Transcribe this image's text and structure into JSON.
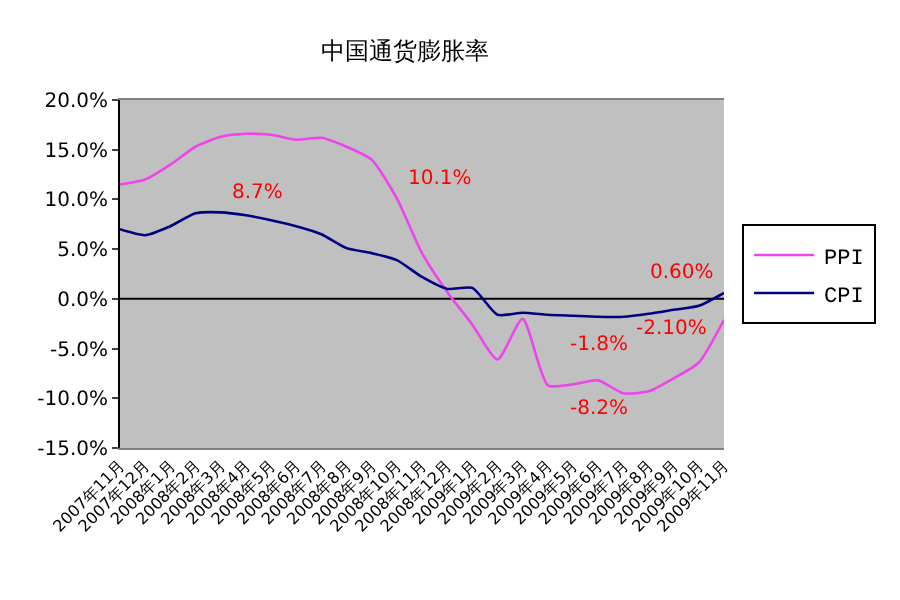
{
  "chart_data": {
    "type": "line",
    "title": "中国通货膨胀率",
    "categories": [
      "2007年11月",
      "2007年12月",
      "2008年1月",
      "2008年2月",
      "2008年3月",
      "2008年4月",
      "2008年5月",
      "2008年6月",
      "2008年7月",
      "2008年8月",
      "2008年9月",
      "2008年10月",
      "2008年11月",
      "2008年12月",
      "2009年1月",
      "2009年2月",
      "2009年3月",
      "2009年4月",
      "2009年5月",
      "2009年6月",
      "2009年7月",
      "2009年8月",
      "2009年9月",
      "2009年10月",
      "2009年11月"
    ],
    "series": [
      {
        "name": "PPI",
        "color": "#ee44ee",
        "values": [
          11.5,
          12,
          13.5,
          15.3,
          16.3,
          16.6,
          16.5,
          16,
          16.2,
          15.3,
          14,
          10.1,
          4.6,
          0.7,
          -2.6,
          -6.1,
          -2,
          -8.7,
          -8.6,
          -8.2,
          -9.5,
          -9.3,
          -8,
          -6.4,
          -2.1
        ],
        "value_labels": [
          null,
          null,
          null,
          null,
          null,
          null,
          null,
          null,
          null,
          null,
          null,
          "10.1%",
          null,
          null,
          null,
          null,
          null,
          null,
          null,
          "-8.2%",
          null,
          null,
          null,
          null,
          "-2.10%"
        ]
      },
      {
        "name": "CPI",
        "color": "#000080",
        "values": [
          7,
          6.4,
          7.3,
          8.6,
          8.7,
          8.4,
          7.9,
          7.3,
          6.5,
          5.1,
          4.6,
          3.9,
          2.2,
          1,
          1.1,
          -1.6,
          -1.4,
          -1.6,
          -1.7,
          -1.8,
          -1.8,
          -1.5,
          -1.1,
          -0.7,
          0.6
        ],
        "value_labels": [
          null,
          null,
          null,
          null,
          "8.7%",
          null,
          null,
          null,
          null,
          null,
          null,
          null,
          null,
          null,
          null,
          null,
          null,
          null,
          null,
          "-1.8%",
          null,
          null,
          null,
          null,
          "0.60%"
        ]
      }
    ],
    "ylim": [
      -15,
      20
    ],
    "yticks": [
      {
        "value": -15,
        "label": "-15.0%"
      },
      {
        "value": -10,
        "label": "-10.0%"
      },
      {
        "value": -5,
        "label": "-5.0%"
      },
      {
        "value": 0,
        "label": "0.0%"
      },
      {
        "value": 5,
        "label": "5.0%"
      },
      {
        "value": 10,
        "label": "10.0%"
      },
      {
        "value": 15,
        "label": "15.0%"
      },
      {
        "value": 20,
        "label": "20.0%"
      }
    ],
    "ref_lines": [
      {
        "axis": "y",
        "value": 0,
        "color": "#000000"
      }
    ],
    "grid": false,
    "legend": "right",
    "marker": "none",
    "line_style": "solid"
  }
}
